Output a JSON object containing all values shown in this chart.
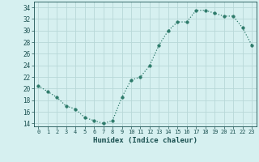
{
  "x": [
    0,
    1,
    2,
    3,
    4,
    5,
    6,
    7,
    8,
    9,
    10,
    11,
    12,
    13,
    14,
    15,
    16,
    17,
    18,
    19,
    20,
    21,
    22,
    23
  ],
  "y": [
    20.5,
    19.5,
    18.5,
    17.0,
    16.5,
    15.0,
    14.5,
    14.0,
    14.5,
    18.5,
    21.5,
    22.0,
    24.0,
    27.5,
    30.0,
    31.5,
    31.5,
    33.5,
    33.5,
    33.0,
    32.5,
    32.5,
    30.5,
    27.5
  ],
  "xlabel": "Humidex (Indice chaleur)",
  "ylim": [
    13.5,
    35
  ],
  "xlim": [
    -0.5,
    23.5
  ],
  "yticks": [
    14,
    16,
    18,
    20,
    22,
    24,
    26,
    28,
    30,
    32,
    34
  ],
  "xticks": [
    0,
    1,
    2,
    3,
    4,
    5,
    6,
    7,
    8,
    9,
    10,
    11,
    12,
    13,
    14,
    15,
    16,
    17,
    18,
    19,
    20,
    21,
    22,
    23
  ],
  "line_color": "#2d7a6a",
  "marker_color": "#2d7a6a",
  "bg_color": "#d6f0f0",
  "grid_color": "#b8d8d8",
  "tick_label_color": "#1a5050",
  "xlabel_color": "#1a5050",
  "marker_size": 2.5,
  "line_width": 0.9
}
